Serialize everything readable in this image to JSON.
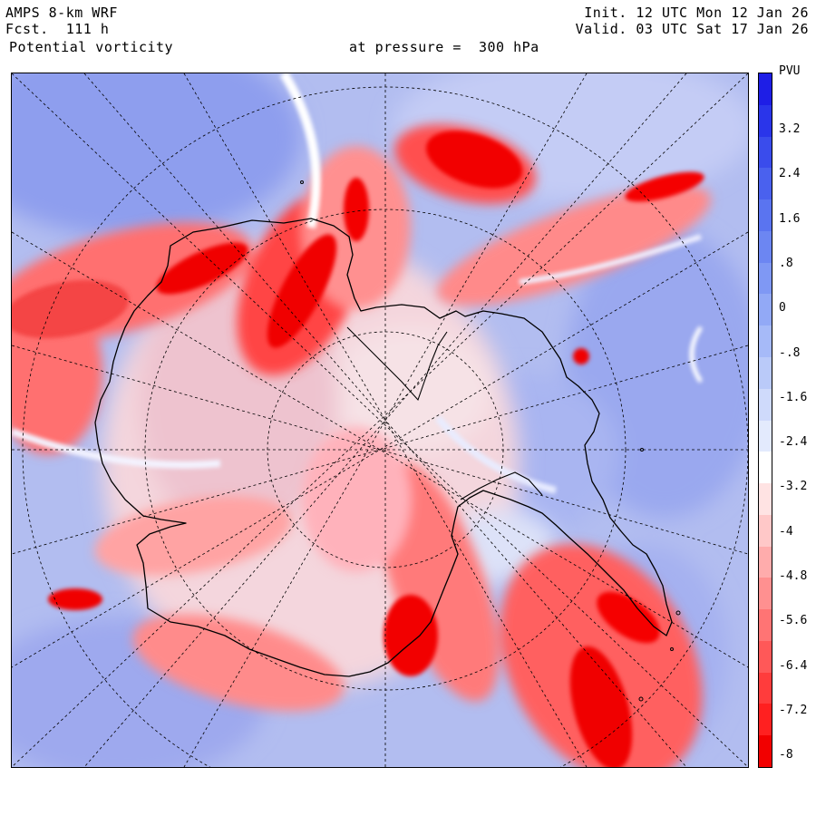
{
  "header": {
    "model": "AMPS 8-km WRF",
    "forecast_hour": "Fcst.  111 h",
    "field": "Potential vorticity",
    "level": "at pressure =  300 hPa",
    "init_time": "Init. 12 UTC Mon 12 Jan 26",
    "valid_time": "Valid. 03 UTC Sat 17 Jan 26"
  },
  "colorbar": {
    "unit": "PVU",
    "labels": [
      "3.2",
      "2.4",
      "1.6",
      ".8",
      "0",
      "-.8",
      "-1.6",
      "-2.4",
      "-3.2",
      "-4",
      "-4.8",
      "-5.6",
      "-6.4",
      "-7.2",
      "-8"
    ],
    "colors": [
      "#1e1ee6",
      "#2a35ea",
      "#3a4cec",
      "#4a61ee",
      "#5a74f0",
      "#6c86f2",
      "#7f98f4",
      "#92a9f6",
      "#a6baf8",
      "#bacaf9",
      "#cfdafb",
      "#e3eafd",
      "#ffffff",
      "#ffe3e3",
      "#ffc8c8",
      "#ffacac",
      "#ff9090",
      "#ff7474",
      "#ff5858",
      "#ff3c3c",
      "#ff2020",
      "#f20000"
    ]
  },
  "map": {
    "projection": "south-polar-stereographic",
    "background_color": "#b8c2f2",
    "coastline_color": "#000000",
    "graticule_style": "dashed"
  }
}
